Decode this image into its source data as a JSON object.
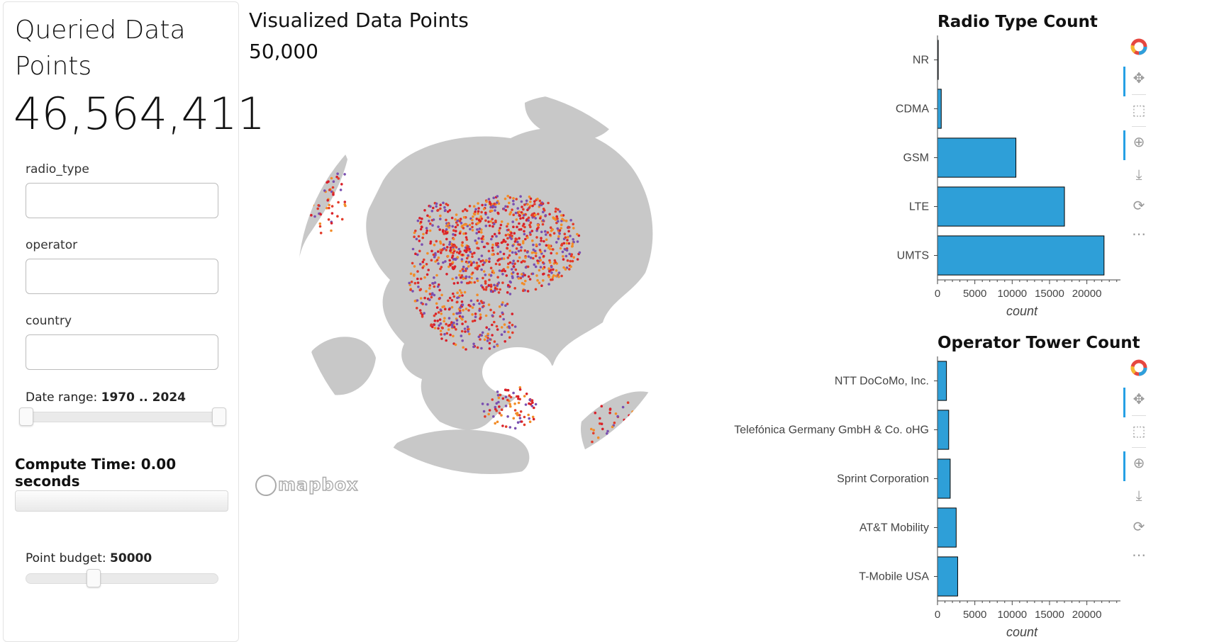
{
  "sidebar": {
    "title": "Queried Data Points",
    "queried_count": "46,564,411",
    "filters": [
      {
        "label": "radio_type",
        "value": "",
        "placeholder": ""
      },
      {
        "label": "operator",
        "value": "",
        "placeholder": ""
      },
      {
        "label": "country",
        "value": "",
        "placeholder": ""
      }
    ],
    "date_range": {
      "label": "Date range:",
      "value": "1970 .. 2024",
      "start": 1970,
      "end": 2024,
      "min": 1970,
      "max": 2024
    },
    "compute_time": "Compute Time: 0.00 seconds",
    "point_budget": {
      "label": "Point budget:",
      "value": "50000",
      "fraction": 0.35
    }
  },
  "map": {
    "title": "Visualized Data Points",
    "count": "50,000",
    "attribution": "mapbox"
  },
  "colors": {
    "bar": "#2e9fd8",
    "bar_outline": "#000000",
    "tool_active": "#26a0e4",
    "land": "#c8c8c8",
    "points": [
      "#e23b2a",
      "#f28c28",
      "#d9202a",
      "#7a4fb0"
    ]
  },
  "toolbar_icons": [
    "bokeh-logo-icon",
    "pan-icon",
    "box-zoom-icon",
    "wheel-zoom-icon",
    "save-icon",
    "reset-icon",
    "more-icon"
  ],
  "chart_data": [
    {
      "type": "bar",
      "orientation": "horizontal",
      "title": "Radio Type Count",
      "categories": [
        "NR",
        "CDMA",
        "GSM",
        "LTE",
        "UMTS"
      ],
      "values": [
        100,
        500,
        10500,
        17000,
        22300
      ],
      "xlabel": "count",
      "ylabel": "",
      "xlim": [
        0,
        24500
      ],
      "xticks": [
        "0",
        "5000",
        "10000",
        "15000",
        "20000"
      ],
      "grid": false
    },
    {
      "type": "bar",
      "orientation": "horizontal",
      "title": "Operator Tower Count",
      "categories": [
        "NTT DoCoMo, Inc.",
        "Telefónica Germany GmbH & Co. oHG",
        "Sprint Corporation",
        "AT&T Mobility",
        "T-Mobile USA"
      ],
      "values": [
        1200,
        1500,
        1700,
        2500,
        2700
      ],
      "xlabel": "count",
      "ylabel": "",
      "xlim": [
        0,
        24500
      ],
      "xticks": [
        "0",
        "5000",
        "10000",
        "15000",
        "20000"
      ],
      "grid": false
    }
  ]
}
